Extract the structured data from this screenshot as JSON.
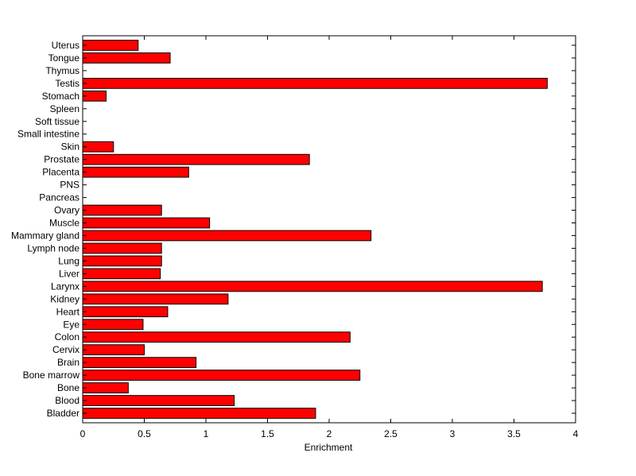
{
  "chart_data": {
    "type": "bar",
    "orientation": "horizontal",
    "xlabel": "Enrichment",
    "ylabel": "",
    "title": "",
    "xlim": [
      0,
      4
    ],
    "x_ticks": [
      "0",
      "0.5",
      "1",
      "1.5",
      "2",
      "2.5",
      "3",
      "3.5",
      "4"
    ],
    "grid": false,
    "bar_color": "#ff0000",
    "categories": [
      "Bladder",
      "Blood",
      "Bone",
      "Bone marrow",
      "Brain",
      "Cervix",
      "Colon",
      "Eye",
      "Heart",
      "Kidney",
      "Larynx",
      "Liver",
      "Lung",
      "Lymph node",
      "Mammary gland",
      "Muscle",
      "Ovary",
      "Pancreas",
      "PNS",
      "Placenta",
      "Prostate",
      "Skin",
      "Small intestine",
      "Soft tissue",
      "Spleen",
      "Stomach",
      "Testis",
      "Thymus",
      "Tongue",
      "Uterus"
    ],
    "values": [
      1.89,
      1.23,
      0.37,
      2.25,
      0.92,
      0.5,
      2.17,
      0.49,
      0.69,
      1.18,
      3.73,
      0.63,
      0.64,
      0.64,
      2.34,
      1.03,
      0.64,
      0,
      0,
      0.86,
      1.84,
      0.25,
      0,
      0,
      0,
      0.19,
      3.77,
      0,
      0.71,
      0.45
    ]
  }
}
